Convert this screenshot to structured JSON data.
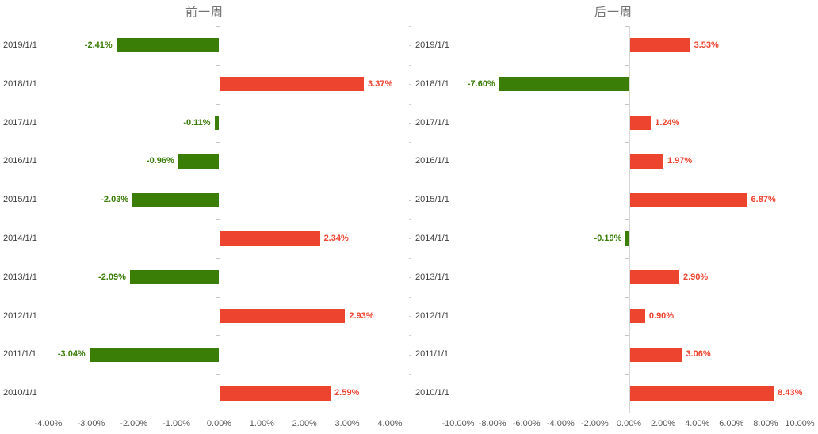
{
  "page": {
    "background": "#FFFFFF"
  },
  "styles": {
    "title_color": "#737373",
    "category_label_color": "#404040",
    "axis_label_color": "#595959",
    "axis_line_color": "#D6D6D6",
    "positive_color": "#ED4430",
    "negative_color": "#3A7D07"
  },
  "chart_data": [
    {
      "type": "bar",
      "orientation": "horizontal",
      "title": "前一周",
      "categories": [
        "2019/1/1",
        "2018/1/1",
        "2017/1/1",
        "2016/1/1",
        "2015/1/1",
        "2014/1/1",
        "2013/1/1",
        "2012/1/1",
        "2011/1/1",
        "2010/1/1"
      ],
      "values": [
        -2.41,
        3.37,
        -0.11,
        -0.96,
        -2.03,
        2.34,
        -2.09,
        2.93,
        -3.04,
        2.59
      ],
      "value_labels": [
        "-2.41%",
        "3.37%",
        "-0.11%",
        "-0.96%",
        "-2.03%",
        "2.34%",
        "-2.09%",
        "2.93%",
        "-3.04%",
        "2.59%"
      ],
      "xlim": [
        -4,
        4
      ],
      "x_tick_values": [
        -4,
        -3,
        -2,
        -1,
        0,
        1,
        2,
        3,
        4
      ],
      "x_tick_labels": [
        "-4.00%",
        "-3.00%",
        "-2.00%",
        "-1.00%",
        "0.00%",
        "1.00%",
        "2.00%",
        "3.00%",
        "4.00%"
      ],
      "positive_color": "#ED4430",
      "negative_color": "#3A7D07",
      "grid": false,
      "legend": "none"
    },
    {
      "type": "bar",
      "orientation": "horizontal",
      "title": "后一周",
      "categories": [
        "2019/1/1",
        "2018/1/1",
        "2017/1/1",
        "2016/1/1",
        "2015/1/1",
        "2014/1/1",
        "2013/1/1",
        "2012/1/1",
        "2011/1/1",
        "2010/1/1"
      ],
      "values": [
        3.53,
        -7.6,
        1.24,
        1.97,
        6.87,
        -0.19,
        2.9,
        0.9,
        3.06,
        8.43
      ],
      "value_labels": [
        "3.53%",
        "-7.60%",
        "1.24%",
        "1.97%",
        "6.87%",
        "-0.19%",
        "2.90%",
        "0.90%",
        "3.06%",
        "8.43%"
      ],
      "xlim": [
        -10,
        10
      ],
      "x_tick_values": [
        -10,
        -8,
        -6,
        -4,
        -2,
        0,
        2,
        4,
        6,
        8,
        10
      ],
      "x_tick_labels": [
        "-10.00%",
        "-8.00%",
        "-6.00%",
        "-4.00%",
        "-2.00%",
        "0.00%",
        "2.00%",
        "4.00%",
        "6.00%",
        "8.00%",
        "10.00%"
      ],
      "positive_color": "#ED4430",
      "negative_color": "#3A7D07",
      "grid": false,
      "legend": "none"
    }
  ]
}
